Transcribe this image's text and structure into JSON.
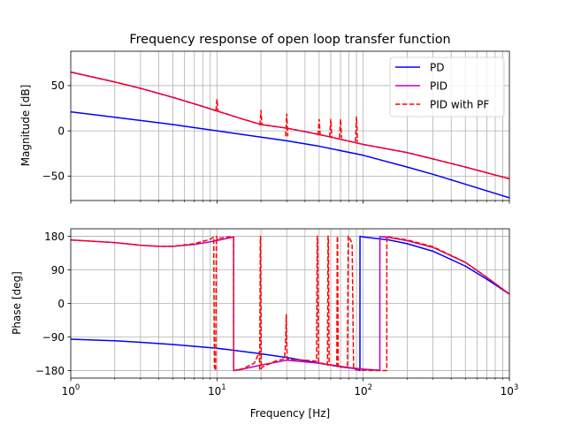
{
  "chart_data": {
    "type": "line",
    "title": "Frequency response of open loop transfer function",
    "xlabel": "Frequency [Hz]",
    "xscale": "log",
    "xlim": [
      1,
      1000
    ],
    "x_ticks": [
      {
        "base": "10",
        "exp": "0"
      },
      {
        "base": "10",
        "exp": "1"
      },
      {
        "base": "10",
        "exp": "2"
      },
      {
        "base": "10",
        "exp": "3"
      }
    ],
    "grid": true,
    "colors": {
      "PD": "#0000ff",
      "PID": "#bf00bf",
      "PID with PF": "#ff0000"
    },
    "legend": {
      "placement": "top-right",
      "entries": [
        "PD",
        "PID",
        "PID with PF"
      ]
    },
    "subplots": [
      {
        "name": "magnitude",
        "ylabel": "Magnitude [dB]",
        "ylim": [
          -77,
          88
        ],
        "yticks": [
          "50",
          "0",
          "−50"
        ],
        "ytick_values": [
          50,
          0,
          -50
        ],
        "series": [
          {
            "name": "PD",
            "style": "solid",
            "x": [
              1,
              2,
              3,
              5,
              10,
              20,
              30,
              50,
              100,
              200,
              300,
              500,
              1000
            ],
            "y": [
              21,
              15,
              11.5,
              7,
              0,
              -7,
              -11,
              -17,
              -27,
              -40,
              -48,
              -59,
              -74
            ]
          },
          {
            "name": "PID",
            "style": "solid",
            "x": [
              1,
              2,
              3,
              5,
              8,
              10,
              15,
              20,
              30,
              50,
              100,
              200,
              300,
              500,
              1000
            ],
            "y": [
              65,
              54,
              47,
              37,
              27,
              22,
              13,
              7,
              3,
              -4,
              -15,
              -24,
              -31,
              -40,
              -53
            ]
          },
          {
            "name": "PID with PF",
            "style": "dashed",
            "x": [
              1,
              2,
              3,
              5,
              8,
              10,
              15,
              20,
              30,
              50,
              100,
              200,
              300,
              500,
              1000
            ],
            "y": [
              65,
              54,
              47,
              37,
              27,
              22,
              13,
              7,
              3,
              -4,
              -15,
              -24,
              -31,
              -40,
              -53
            ],
            "spikes": [
              {
                "x": 10,
                "peak": 35,
                "dip": 22
              },
              {
                "x": 20,
                "peak": 23,
                "dip": 6
              },
              {
                "x": 30,
                "peak": 19,
                "dip": -6
              },
              {
                "x": 50,
                "peak": 13,
                "dip": -5
              },
              {
                "x": 60,
                "peak": 13,
                "dip": -7
              },
              {
                "x": 70,
                "peak": 13,
                "dip": -8
              },
              {
                "x": 90,
                "peak": 16,
                "dip": -12
              }
            ]
          }
        ]
      },
      {
        "name": "phase",
        "ylabel": "Phase [deg]",
        "ylim": [
          -200,
          200
        ],
        "yticks": [
          "180",
          "90",
          "0",
          "−90",
          "−180"
        ],
        "ytick_values": [
          180,
          90,
          0,
          -90,
          -180
        ],
        "series": [
          {
            "name": "PD",
            "style": "solid",
            "x": [
              1,
              2,
              3,
              5,
              10,
              20,
              30,
              50,
              70,
              90,
              95,
              95.1,
              100,
              150,
              200,
              300,
              500,
              700,
              1000
            ],
            "y": [
              -96,
              -100,
              -104,
              -110,
              -120,
              -135,
              -145,
              -160,
              -170,
              -175,
              -180,
              180,
              178,
              170,
              160,
              140,
              100,
              65,
              25
            ]
          },
          {
            "name": "PID",
            "style": "solid",
            "x": [
              1,
              2,
              3,
              4,
              5,
              7,
              9,
              11,
              13,
              13.01,
              15,
              20,
              30,
              50,
              80,
              100,
              130,
              130.1,
              150,
              200,
              300,
              500,
              700,
              1000
            ],
            "y": [
              170,
              163,
              156,
              153,
              153,
              158,
              165,
              172,
              178,
              -180,
              -176,
              -165,
              -152,
              -160,
              -172,
              -176,
              -179,
              179,
              177,
              168,
              150,
              110,
              70,
              25
            ]
          },
          {
            "name": "PID with PF",
            "style": "dashed",
            "x": [
              1,
              2,
              3,
              4,
              5,
              7,
              9,
              9.5,
              9.6,
              9.8,
              9.9,
              10.1,
              10.5,
              12,
              13,
              13.01,
              15,
              18,
              19.5,
              19.6,
              19.8,
              19.9,
              20.1,
              20.5,
              25,
              29,
              29.5,
              29.8,
              30,
              30.2,
              31,
              40,
              48,
              48.5,
              48.8,
              49.5,
              50.5,
              52,
              57,
              57.5,
              57.8,
              58.5,
              59.5,
              61,
              66,
              66.5,
              66.8,
              67.5,
              68.5,
              70,
              78,
              79,
              80,
              82,
              84,
              86,
              90,
              100,
              130,
              145,
              145.1,
              150,
              200,
              300,
              500,
              700,
              1000
            ],
            "y": [
              170,
              163,
              156,
              153,
              153,
              160,
              172,
              178,
              -170,
              -180,
              180,
              170,
              175,
              178,
              178,
              -180,
              -175,
              -160,
              -130,
              -180,
              180,
              178,
              -175,
              -170,
              -155,
              -148,
              -100,
              -30,
              -100,
              -148,
              -150,
              -152,
              -155,
              180,
              180,
              -160,
              -160,
              -160,
              -165,
              180,
              180,
              -165,
              -165,
              -165,
              -168,
              180,
              180,
              -168,
              -168,
              -170,
              -172,
              180,
              180,
              170,
              160,
              -175,
              -178,
              -179,
              -180,
              -180,
              180,
              178,
              170,
              152,
              110,
              70,
              25
            ]
          }
        ]
      }
    ]
  }
}
